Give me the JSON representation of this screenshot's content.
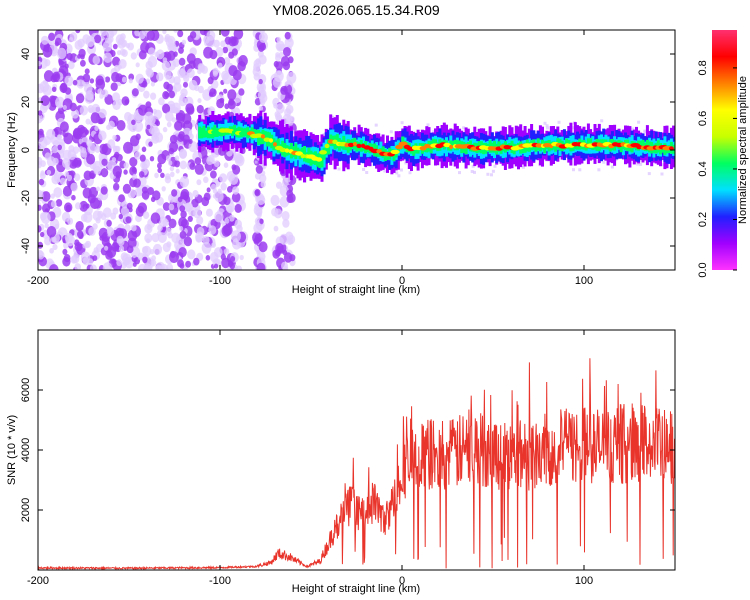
{
  "title": "YM08.2026.065.15.34.R09",
  "chart_data": [
    {
      "type": "heatmap",
      "xlabel": "Height of straight line (km)",
      "ylabel": "Frequency (Hz)",
      "xlim": [
        -200,
        150
      ],
      "ylim": [
        -50,
        50
      ],
      "xticks": [
        -200,
        -100,
        0,
        100
      ],
      "yticks": [
        -40,
        -20,
        0,
        20,
        40
      ],
      "colorbar": {
        "label": "Normalized spectral amplitude",
        "range": [
          0,
          0.95
        ],
        "ticks": [
          "0.0",
          "0.2",
          "0.4",
          "0.6",
          "0.8"
        ],
        "colors": [
          "#ff33ff",
          "#a000ff",
          "#2020ff",
          "#00e0ff",
          "#00ff60",
          "#c8ff00",
          "#ffff00",
          "#ff8000",
          "#ff0000",
          "#ff3070"
        ]
      },
      "ridge": {
        "x": [
          -110,
          -95,
          -85,
          -75,
          -65,
          -55,
          -45,
          -40,
          -35,
          -30,
          -25,
          -20,
          -15,
          -10,
          -5,
          0,
          5,
          10,
          20,
          40,
          60,
          80,
          100,
          120,
          140,
          150
        ],
        "frequency": [
          7,
          8,
          7,
          5,
          0,
          -2,
          -4,
          4,
          3,
          2,
          2,
          1,
          0,
          -2,
          -2,
          3,
          0,
          1,
          2,
          1,
          1,
          2,
          2,
          2,
          1,
          1
        ]
      }
    },
    {
      "type": "line",
      "xlabel": "Height of straight line (km)",
      "ylabel": "SNR (10 * v/v)",
      "xlim": [
        -200,
        150
      ],
      "ylim": [
        0,
        8000
      ],
      "xticks": [
        -200,
        -100,
        0,
        100
      ],
      "yticks": [
        2000,
        4000,
        6000
      ],
      "color": "#e8342b",
      "x": [
        -200,
        -150,
        -100,
        -80,
        -72,
        -68,
        -62,
        -58,
        -52,
        -45,
        -38,
        -33,
        -28,
        -22,
        -15,
        -10,
        -5,
        0,
        5,
        10,
        15,
        20,
        30,
        40,
        50,
        60,
        70,
        80,
        90,
        100,
        110,
        120,
        130,
        140,
        150
      ],
      "y": [
        70,
        60,
        80,
        120,
        250,
        550,
        450,
        300,
        120,
        300,
        1200,
        1800,
        2200,
        1800,
        2300,
        1600,
        2200,
        3400,
        3600,
        3700,
        3900,
        3700,
        3900,
        4100,
        3900,
        3800,
        3900,
        4000,
        4100,
        4200,
        4100,
        4200,
        4300,
        4100,
        4000
      ]
    }
  ]
}
